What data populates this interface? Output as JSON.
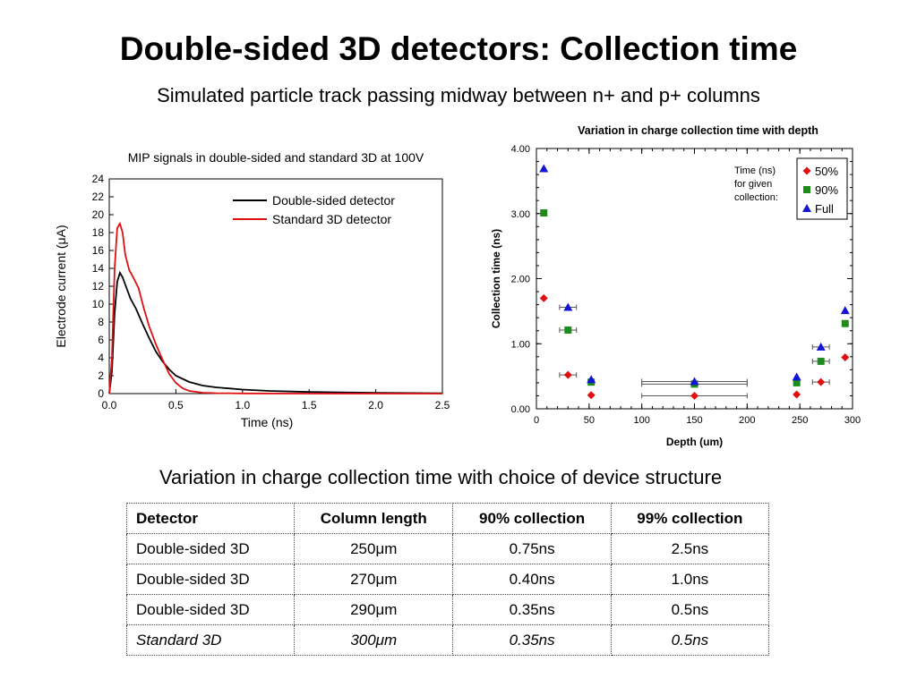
{
  "title": "Double-sided 3D detectors: Collection time",
  "subtitle": "Simulated particle track passing midway between n+ and p+ columns",
  "chart_data": [
    {
      "type": "line",
      "title": "MIP signals in double-sided and standard 3D at 100V",
      "xlabel": "Time (ns)",
      "ylabel": "Electrode current (μA)",
      "xlim": [
        0,
        2.5
      ],
      "ylim": [
        0,
        24
      ],
      "xticks": [
        "0.0",
        "0.5",
        "1.0",
        "1.5",
        "2.0",
        "2.5"
      ],
      "yticks": [
        "0",
        "2",
        "4",
        "6",
        "8",
        "10",
        "12",
        "14",
        "16",
        "18",
        "20",
        "22",
        "24"
      ],
      "grid": false,
      "legend_position": "top-right",
      "series": [
        {
          "name": "Double-sided detector",
          "color": "#000000",
          "x": [
            0,
            0.02,
            0.04,
            0.06,
            0.08,
            0.1,
            0.13,
            0.16,
            0.2,
            0.25,
            0.3,
            0.35,
            0.4,
            0.45,
            0.5,
            0.6,
            0.7,
            0.8,
            1.0,
            1.2,
            1.5,
            2.0,
            2.5
          ],
          "y": [
            0,
            2.5,
            9,
            12.5,
            13.5,
            13,
            11.8,
            10.6,
            9.5,
            7.8,
            6.2,
            4.7,
            3.6,
            2.7,
            2.0,
            1.3,
            0.9,
            0.7,
            0.45,
            0.3,
            0.18,
            0.08,
            0.03
          ]
        },
        {
          "name": "Standard 3D detector",
          "color": "#e01010",
          "x": [
            0,
            0.02,
            0.04,
            0.06,
            0.08,
            0.1,
            0.12,
            0.15,
            0.18,
            0.22,
            0.26,
            0.3,
            0.35,
            0.4,
            0.45,
            0.5,
            0.55,
            0.6,
            0.7,
            0.8,
            1.0,
            1.5,
            2.5
          ],
          "y": [
            0,
            4,
            14,
            18.5,
            19,
            18,
            15.5,
            13.8,
            13,
            11.8,
            9.5,
            7.5,
            5.5,
            3.8,
            2.2,
            1.2,
            0.6,
            0.3,
            0.1,
            0.05,
            0.02,
            0,
            0
          ]
        }
      ]
    },
    {
      "type": "scatter",
      "title": "Variation in charge collection time with depth",
      "xlabel": "Depth (um)",
      "ylabel": "Collection time (ns)",
      "xlim": [
        0,
        300
      ],
      "ylim": [
        0,
        4
      ],
      "xticks": [
        "0",
        "50",
        "100",
        "150",
        "200",
        "250",
        "300"
      ],
      "yticks": [
        "0.00",
        "1.00",
        "2.00",
        "3.00",
        "4.00"
      ],
      "grid": false,
      "legend_position": "top-right",
      "legend_note": [
        "Time (ns)",
        "for given",
        "collection:"
      ],
      "series": [
        {
          "name": "50%",
          "color": "#e01010",
          "marker": "diamond",
          "points": [
            {
              "x": 7,
              "y": 1.7
            },
            {
              "x": 30,
              "y": 0.52,
              "xerr": 8
            },
            {
              "x": 52,
              "y": 0.21
            },
            {
              "x": 150,
              "y": 0.2,
              "xerr": 50
            },
            {
              "x": 247,
              "y": 0.22
            },
            {
              "x": 270,
              "y": 0.41,
              "xerr": 8
            },
            {
              "x": 293,
              "y": 0.79
            }
          ]
        },
        {
          "name": "90%",
          "color": "#1c8c1c",
          "marker": "square",
          "points": [
            {
              "x": 7,
              "y": 3.01
            },
            {
              "x": 30,
              "y": 1.21,
              "xerr": 8
            },
            {
              "x": 52,
              "y": 0.41
            },
            {
              "x": 150,
              "y": 0.38,
              "xerr": 50
            },
            {
              "x": 247,
              "y": 0.4
            },
            {
              "x": 270,
              "y": 0.73,
              "xerr": 8
            },
            {
              "x": 293,
              "y": 1.31
            }
          ]
        },
        {
          "name": "Full",
          "color": "#1414d4",
          "marker": "triangle",
          "points": [
            {
              "x": 7,
              "y": 3.69
            },
            {
              "x": 30,
              "y": 1.56,
              "xerr": 8
            },
            {
              "x": 52,
              "y": 0.45
            },
            {
              "x": 150,
              "y": 0.42,
              "xerr": 50
            },
            {
              "x": 247,
              "y": 0.49
            },
            {
              "x": 270,
              "y": 0.95,
              "xerr": 8
            },
            {
              "x": 293,
              "y": 1.51
            }
          ]
        }
      ]
    }
  ],
  "table": {
    "heading": "Variation in charge collection time with choice of device structure",
    "headers": [
      "Detector",
      "Column length",
      "90% collection",
      "99% collection"
    ],
    "rows": [
      [
        "Double-sided 3D",
        "250μm",
        "0.75ns",
        "2.5ns"
      ],
      [
        "Double-sided 3D",
        "270μm",
        "0.40ns",
        "1.0ns"
      ],
      [
        "Double-sided 3D",
        "290μm",
        "0.35ns",
        "0.5ns"
      ],
      [
        "Standard 3D",
        "300μm",
        "0.35ns",
        "0.5ns"
      ]
    ],
    "italic_rows": [
      3
    ]
  }
}
